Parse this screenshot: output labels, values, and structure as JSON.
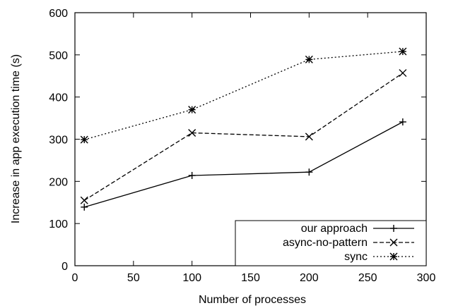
{
  "chart_data": {
    "type": "line",
    "title": "",
    "xlabel": "Number of processes",
    "ylabel": "Increase in app execution time (s)",
    "xlim": [
      0,
      300
    ],
    "ylim": [
      0,
      600
    ],
    "x_ticks": [
      0,
      50,
      100,
      150,
      200,
      250,
      300
    ],
    "y_ticks": [
      0,
      100,
      200,
      300,
      400,
      500,
      600
    ],
    "grid": false,
    "legend_position": "bottom-right",
    "series": [
      {
        "name": "our approach",
        "marker": "plus",
        "line_style": "solid",
        "x": [
          8,
          100,
          200,
          280
        ],
        "y": [
          139,
          214,
          222,
          341
        ]
      },
      {
        "name": "async-no-pattern",
        "marker": "cross",
        "line_style": "dashed",
        "x": [
          8,
          100,
          200,
          280
        ],
        "y": [
          155,
          315,
          306,
          457
        ]
      },
      {
        "name": "sync",
        "marker": "star",
        "line_style": "dotted",
        "x": [
          8,
          100,
          200,
          280
        ],
        "y": [
          299,
          370,
          489,
          508
        ]
      }
    ]
  }
}
